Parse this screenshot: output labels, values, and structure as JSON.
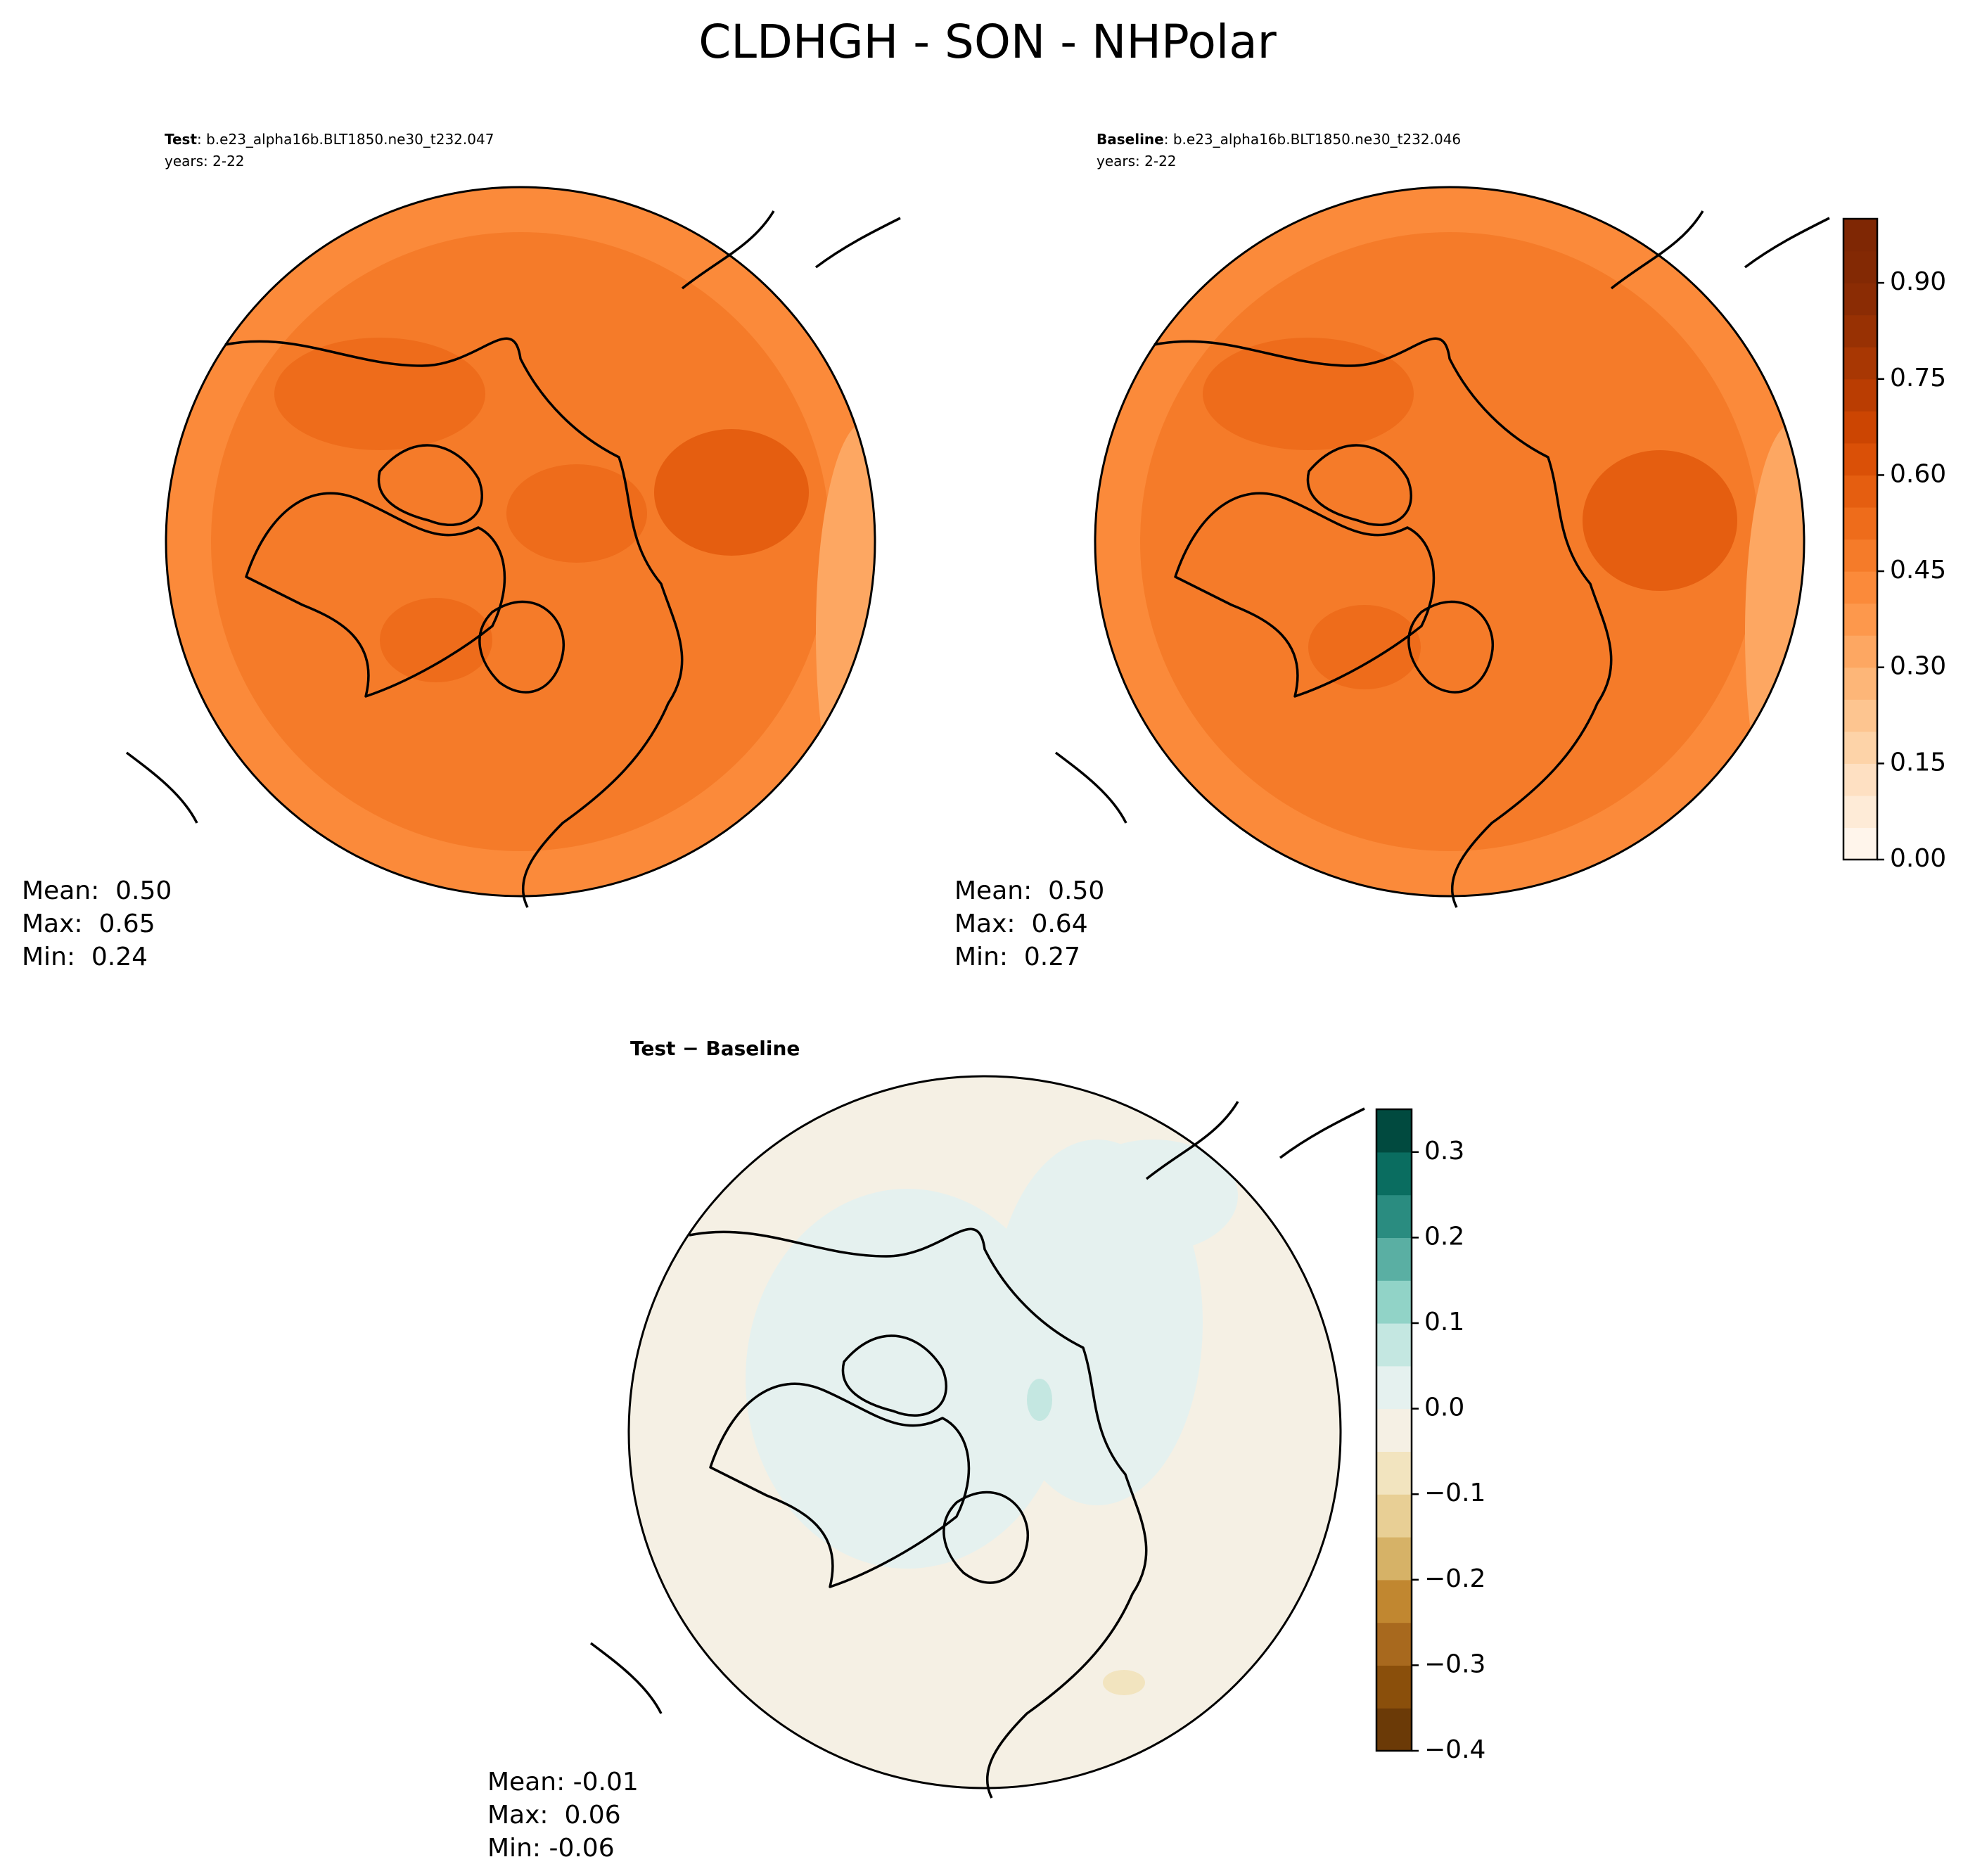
{
  "title": "CLDHGH - SON - NHPolar",
  "panels": [
    {
      "label": "Test",
      "run": ": b.e23_alpha16b.BLT1850.ne30_t232.047",
      "years": "years: 2-22",
      "stats": [
        "Mean:  0.50",
        "Max:  0.65",
        "Min:  0.24"
      ]
    },
    {
      "label": "Baseline",
      "run": ": b.e23_alpha16b.BLT1850.ne30_t232.046",
      "years": "years: 2-22",
      "stats": [
        "Mean:  0.50",
        "Max:  0.64",
        "Min:  0.27"
      ]
    }
  ],
  "diff": {
    "title": "Test − Baseline",
    "stats": [
      "Mean: -0.01",
      "Max:  0.06",
      "Min: -0.06"
    ]
  },
  "colorbars": [
    {
      "lim": [
        0,
        1.0
      ],
      "ticks": [
        {
          "value": 0,
          "label": "0.00"
        },
        {
          "value": 0.15,
          "label": "0.15"
        },
        {
          "value": 0.3,
          "label": "0.30"
        },
        {
          "value": 0.45,
          "label": "0.45"
        },
        {
          "value": 0.6,
          "label": "0.60"
        },
        {
          "value": 0.75,
          "label": "0.75"
        },
        {
          "value": 0.9,
          "label": "0.90"
        }
      ],
      "colors": [
        "#fff5eb",
        "#feebd7",
        "#fee0c2",
        "#fdd3a8",
        "#fdc590",
        "#fdb678",
        "#fda762",
        "#fd984c",
        "#fb8a3a",
        "#f57b29",
        "#ee6c1b",
        "#e55e10",
        "#da5007",
        "#cc4502",
        "#ba3d02",
        "#a83703",
        "#983103",
        "#8b2c04",
        "#832904",
        "#7f2704"
      ]
    },
    {
      "lim": [
        -0.4,
        0.35
      ],
      "ticks": [
        {
          "value": -0.4,
          "label": "−0.4"
        },
        {
          "value": -0.3,
          "label": "−0.3"
        },
        {
          "value": -0.2,
          "label": "−0.2"
        },
        {
          "value": -0.1,
          "label": "−0.1"
        },
        {
          "value": 0,
          "label": "0.0"
        },
        0.1,
        0.2,
        0.3
      ],
      "colors": [
        "#6b3a07",
        "#8a4f0b",
        "#a8691e",
        "#c18730",
        "#d6b267",
        "#e8cf95",
        "#f2e4bf",
        "#f5f0e4",
        "#e5f1ef",
        "#c4e7e1",
        "#91d3c7",
        "#5aafa3",
        "#2a8c80",
        "#0a6d60",
        "#014a3f"
      ]
    }
  ]
}
